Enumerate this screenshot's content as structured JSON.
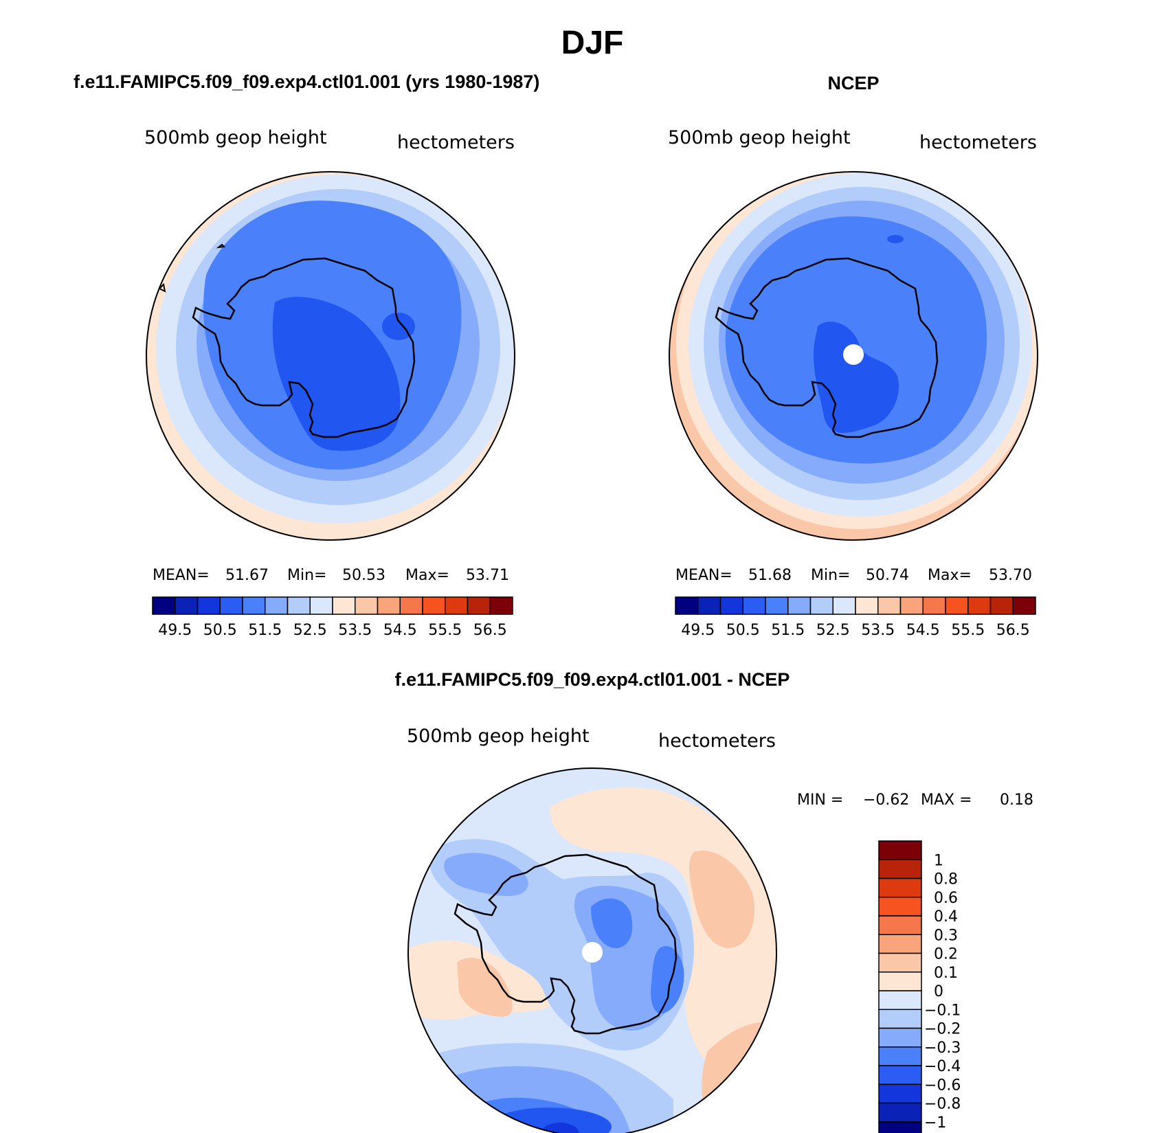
{
  "chart_data": {
    "type": "polar-contour-map",
    "title": "DJF",
    "panels": [
      {
        "id": "model",
        "title": "f.e11.FAMIPC5.f09_f09.exp4.ctl01.001 (yrs 1980-1987)",
        "variable": "500mb geop height",
        "units": "hectometers",
        "stats": {
          "mean_label": "MEAN=",
          "mean": "51.67",
          "min_label": "Min=",
          "min": "50.53",
          "max_label": "Max=",
          "max": "53.71"
        },
        "colorbar_labels": [
          "49.5",
          "50.5",
          "51.5",
          "52.5",
          "53.5",
          "54.5",
          "55.5",
          "56.5"
        ],
        "contour_bands": [
          {
            "value": 53.7,
            "color": "#fde6d4"
          },
          {
            "value": 53.0,
            "color": "#dbe8fb"
          },
          {
            "value": 52.5,
            "color": "#b3cdfb"
          },
          {
            "value": 52.0,
            "color": "#86abfa"
          },
          {
            "value": 51.5,
            "color": "#4a80fa"
          },
          {
            "value": 51.0,
            "color": "#2157f0"
          }
        ],
        "pole_marker": false
      },
      {
        "id": "obs",
        "title": "NCEP",
        "variable": "500mb geop height",
        "units": "hectometers",
        "stats": {
          "mean_label": "MEAN=",
          "mean": "51.68",
          "min_label": "Min=",
          "min": "50.74",
          "max_label": "Max=",
          "max": "53.70"
        },
        "colorbar_labels": [
          "49.5",
          "50.5",
          "51.5",
          "52.5",
          "53.5",
          "54.5",
          "55.5",
          "56.5"
        ],
        "contour_bands": [
          {
            "value": 53.7,
            "color": "#fbc7a9"
          },
          {
            "value": 53.5,
            "color": "#fde6d4"
          },
          {
            "value": 53.0,
            "color": "#dbe8fb"
          },
          {
            "value": 52.5,
            "color": "#b3cdfb"
          },
          {
            "value": 52.0,
            "color": "#86abfa"
          },
          {
            "value": 51.5,
            "color": "#4a80fa"
          },
          {
            "value": 51.0,
            "color": "#2157f0"
          }
        ],
        "pole_marker": true
      },
      {
        "id": "diff",
        "title": "f.e11.FAMIPC5.f09_f09.exp4.ctl01.001 - NCEP",
        "variable": "500mb geop height",
        "units": "hectometers",
        "stats": {
          "min_label": "MIN =",
          "min": "−0.62",
          "max_label": "MAX =",
          "max": "0.18"
        },
        "colorbar_labels": [
          "1",
          "0.8",
          "0.6",
          "0.4",
          "0.3",
          "0.2",
          "0.1",
          "0",
          "−0.1",
          "−0.2",
          "−0.3",
          "−0.4",
          "−0.6",
          "−0.8",
          "−1"
        ],
        "pole_marker": true
      }
    ],
    "colorbar_colors_model_obs": [
      "#000080",
      "#0a22b5",
      "#1235dc",
      "#2b5df5",
      "#4a80fa",
      "#86abfa",
      "#b3cdfb",
      "#dbe8fb",
      "#fde6d4",
      "#fbc7a9",
      "#f9a47a",
      "#f7774c",
      "#f75320",
      "#dd3a10",
      "#b8240a",
      "#7c0008"
    ],
    "colorbar_colors_diff": [
      "#7c0008",
      "#b8240a",
      "#dd3a10",
      "#f75320",
      "#f7774c",
      "#f9a47a",
      "#fbc7a9",
      "#fde6d4",
      "#dbe8fb",
      "#b3cdfb",
      "#86abfa",
      "#4a80fa",
      "#2b5df5",
      "#1235dc",
      "#0a22b5",
      "#000080"
    ]
  }
}
